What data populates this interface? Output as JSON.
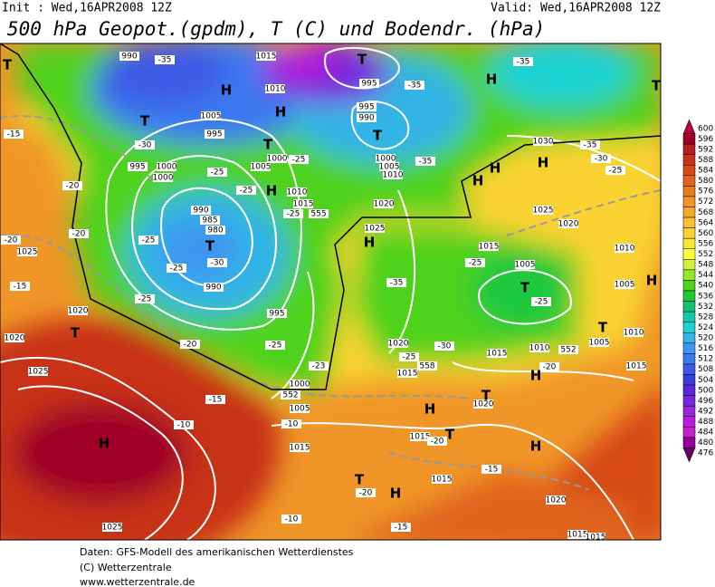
{
  "header": {
    "init": "Init : Wed,16APR2008 12Z",
    "valid": "Valid: Wed,16APR2008 12Z",
    "title": "500 hPa Geopot.(gpdm), T (C) und Bodendr. (hPa)"
  },
  "colorbar": {
    "labels": [
      "600",
      "596",
      "592",
      "588",
      "584",
      "580",
      "576",
      "572",
      "568",
      "564",
      "560",
      "556",
      "552",
      "548",
      "544",
      "540",
      "536",
      "532",
      "528",
      "524",
      "520",
      "516",
      "512",
      "508",
      "504",
      "500",
      "496",
      "492",
      "488",
      "484",
      "480",
      "476"
    ],
    "colors": [
      "#b00040",
      "#a00028",
      "#b41e1e",
      "#c83219",
      "#d74a14",
      "#e0641e",
      "#e87d1e",
      "#f09628",
      "#f5aa28",
      "#f8c032",
      "#fad232",
      "#fce632",
      "#ffff3c",
      "#d2f03c",
      "#96e628",
      "#50d21e",
      "#1ec83c",
      "#14be78",
      "#14c8aa",
      "#1ed2d2",
      "#32b4e6",
      "#3c96f0",
      "#3c78f0",
      "#3c5ae6",
      "#3c3cdc",
      "#5a28dc",
      "#7828dc",
      "#9628dc",
      "#b41edc",
      "#c81ec8",
      "#960096",
      "#640064"
    ]
  },
  "map_labels": [
    "990",
    "-35",
    "1015",
    "T",
    "-35",
    "H",
    "T",
    "T",
    "H",
    "1010",
    "995",
    "-35",
    "995",
    "990",
    "1005",
    "H",
    "T",
    "T",
    "-15",
    "-30",
    "995",
    "T",
    "1030",
    "-35",
    "995",
    "1000",
    "1000",
    "1005",
    "1000",
    "-25",
    "1000",
    "1005",
    "1010",
    "H",
    "-35",
    "-30",
    "-25",
    "-25",
    "H",
    "H",
    "-20",
    "-25",
    "H",
    "1010",
    "1015",
    "1020",
    "990",
    "985",
    "980",
    "T",
    "-25",
    "555",
    "1025",
    "1020",
    "-20",
    "1025",
    "-20",
    "-25",
    "-30",
    "-25",
    "1025",
    "H",
    "1015",
    "1010",
    "-15",
    "1020",
    "-25",
    "990",
    "995",
    "-35",
    "-25",
    "1005",
    "T",
    "-25",
    "1005",
    "H",
    "T",
    "1020",
    "-20",
    "-25",
    "1020",
    "-25",
    "-30",
    "1015",
    "1010",
    "552",
    "T",
    "1005",
    "1010",
    "1015",
    "1025",
    "-23",
    "1015",
    "558",
    "-20",
    "H",
    "1000",
    "552",
    "1005",
    "1020",
    "-15",
    "H",
    "T",
    "-10",
    "-10",
    "1015",
    "H",
    "1015",
    "-20",
    "T",
    "H",
    "-15",
    "T",
    "1015",
    "-20",
    "H",
    "1020",
    "-10",
    "1025",
    "-15",
    "1015",
    "1015"
  ],
  "footer": [
    "Daten: GFS-Modell des amerikanischen Wetterdienstes",
    "(C) Wetterzentrale",
    "www.wetterzentrale.de"
  ]
}
